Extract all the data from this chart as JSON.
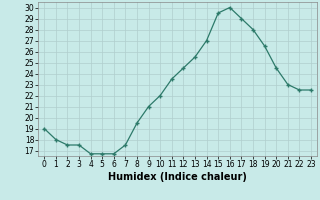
{
  "x": [
    0,
    1,
    2,
    3,
    4,
    5,
    6,
    7,
    8,
    9,
    10,
    11,
    12,
    13,
    14,
    15,
    16,
    17,
    18,
    19,
    20,
    21,
    22,
    23
  ],
  "y": [
    19,
    18,
    17.5,
    17.5,
    16.7,
    16.7,
    16.7,
    17.5,
    19.5,
    21,
    22,
    23.5,
    24.5,
    25.5,
    27,
    29.5,
    30,
    29,
    28,
    26.5,
    24.5,
    23,
    22.5,
    22.5
  ],
  "xlabel": "Humidex (Indice chaleur)",
  "xlim": [
    -0.5,
    23.5
  ],
  "ylim": [
    16.5,
    30.5
  ],
  "yticks": [
    17,
    18,
    19,
    20,
    21,
    22,
    23,
    24,
    25,
    26,
    27,
    28,
    29,
    30
  ],
  "xticks": [
    0,
    1,
    2,
    3,
    4,
    5,
    6,
    7,
    8,
    9,
    10,
    11,
    12,
    13,
    14,
    15,
    16,
    17,
    18,
    19,
    20,
    21,
    22,
    23
  ],
  "line_color": "#2d7a6a",
  "bg_color": "#c8eae8",
  "grid_color": "#b0cece",
  "tick_fontsize": 5.5,
  "xlabel_fontsize": 7
}
